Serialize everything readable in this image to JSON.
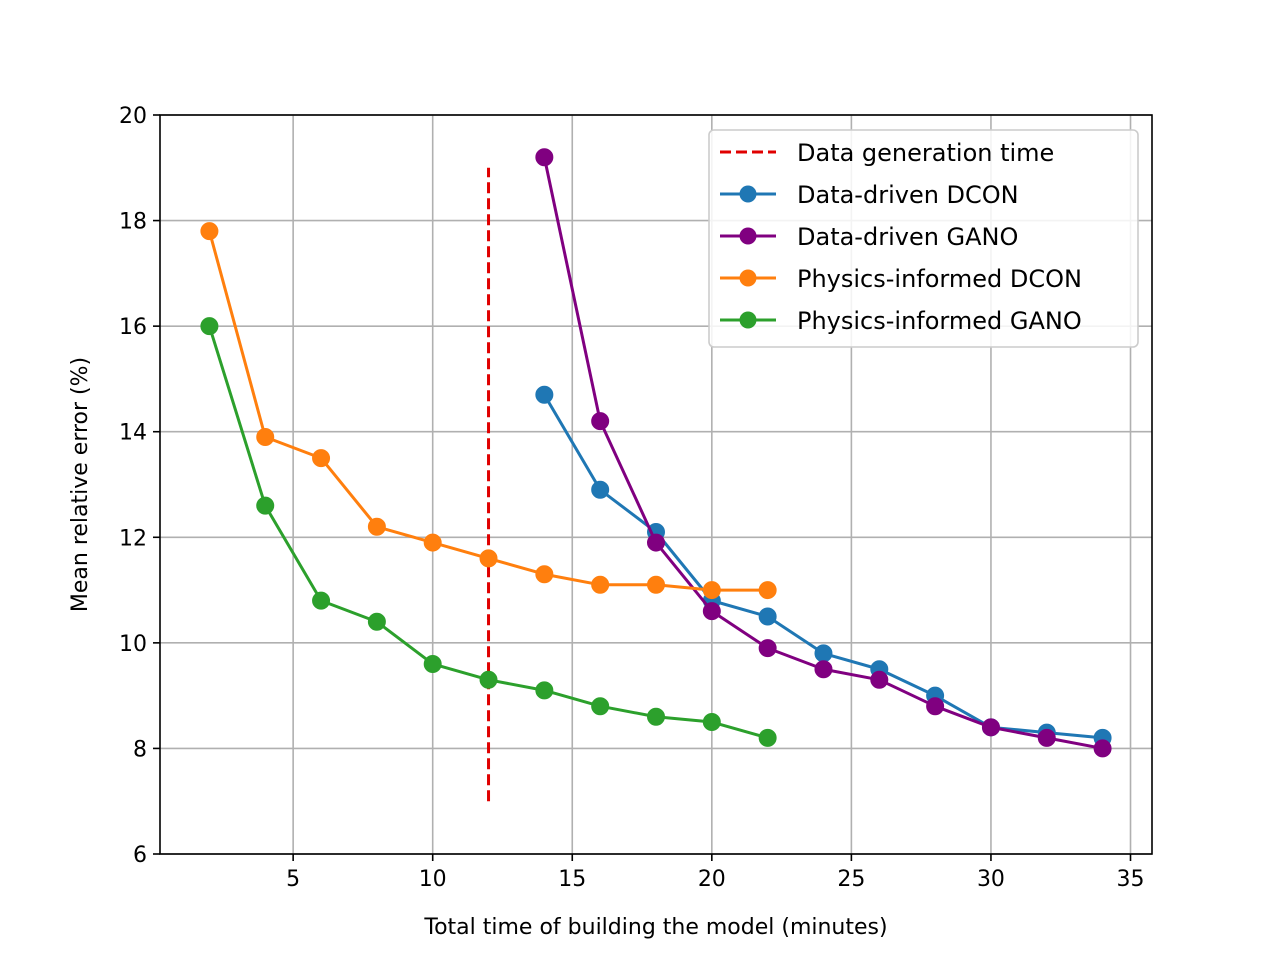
{
  "chart_data": {
    "type": "line",
    "title": "",
    "xlabel": "Total time of building the model (minutes)",
    "ylabel": "Mean relative error (%)",
    "xlim": [
      0.23,
      35.77
    ],
    "ylim": [
      6,
      20
    ],
    "xticks": [
      5,
      10,
      15,
      20,
      25,
      30,
      35
    ],
    "yticks": [
      6,
      8,
      10,
      12,
      14,
      16,
      18,
      20
    ],
    "grid": true,
    "legend_position": "top-right",
    "reference_line": {
      "name": "Data generation time",
      "x": 12,
      "y_range": [
        7,
        19
      ],
      "color": "#e00000",
      "style": "dashed"
    },
    "series": [
      {
        "name": "Data-driven DCON",
        "color": "#1f77b4",
        "x": [
          14,
          16,
          18,
          20,
          22,
          24,
          26,
          28,
          30,
          32,
          34
        ],
        "y": [
          14.7,
          12.9,
          12.1,
          10.8,
          10.5,
          9.8,
          9.5,
          9.0,
          8.4,
          8.3,
          8.2
        ]
      },
      {
        "name": "Data-driven GANO",
        "color": "#800080",
        "x": [
          14,
          16,
          18,
          20,
          22,
          24,
          26,
          28,
          30,
          32,
          34
        ],
        "y": [
          19.2,
          14.2,
          11.9,
          10.6,
          9.9,
          9.5,
          9.3,
          8.8,
          8.4,
          8.2,
          8.0
        ]
      },
      {
        "name": "Physics-informed DCON",
        "color": "#ff7f0e",
        "x": [
          2,
          4,
          6,
          8,
          10,
          12,
          14,
          16,
          18,
          20,
          22
        ],
        "y": [
          17.8,
          13.9,
          13.5,
          12.2,
          11.9,
          11.6,
          11.3,
          11.1,
          11.1,
          11.0,
          11.0
        ]
      },
      {
        "name": "Physics-informed GANO",
        "color": "#2ca02c",
        "x": [
          2,
          4,
          6,
          8,
          10,
          12,
          14,
          16,
          18,
          20,
          22
        ],
        "y": [
          16.0,
          12.6,
          10.8,
          10.4,
          9.6,
          9.3,
          9.1,
          8.8,
          8.6,
          8.5,
          8.2
        ]
      }
    ]
  }
}
